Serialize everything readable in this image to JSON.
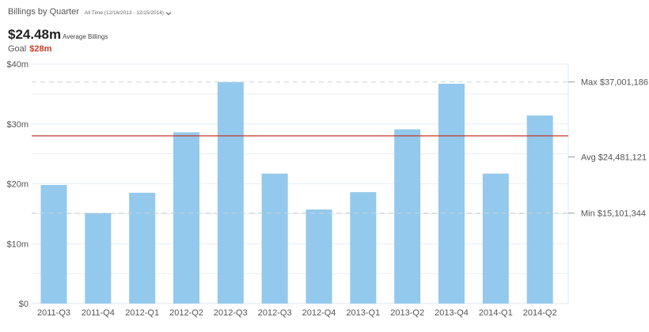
{
  "header": {
    "title": "Billings by Quarter",
    "date_range": "All Time (12/16/2013 - 12/15/2014)",
    "metric_value": "$24.48m",
    "metric_label": "Average Billings",
    "goal_label": "Goal",
    "goal_value": "$28m"
  },
  "colors": {
    "bar": "#93c9ec",
    "goal_line": "#c0392b",
    "grid": "#dce9f0",
    "stat_line": "#c9d3d8",
    "goal_text": "#cc3b2a"
  },
  "chart_data": {
    "type": "bar",
    "categories": [
      "2011-Q3",
      "2011-Q4",
      "2012-Q1",
      "2012-Q2",
      "2012-Q3",
      "2012-Q3",
      "2012-Q4",
      "2013-Q1",
      "2013-Q2",
      "2013-Q4",
      "2014-Q1",
      "2014-Q2"
    ],
    "values": [
      19.8,
      15.1,
      18.5,
      28.6,
      37.0,
      21.7,
      15.7,
      18.6,
      29.1,
      36.7,
      21.7,
      31.4
    ],
    "ylim": [
      0,
      40
    ],
    "yticks": [
      {
        "value": 0,
        "label": "$0"
      },
      {
        "value": 10,
        "label": "$10m"
      },
      {
        "value": 20,
        "label": "$20m"
      },
      {
        "value": 30,
        "label": "$30m"
      },
      {
        "value": 40,
        "label": "$40m"
      }
    ],
    "goal": 28,
    "stats": [
      {
        "name": "Max",
        "value": 37.001186,
        "label": "Max $37,001,186"
      },
      {
        "name": "Avg",
        "value": 24.481121,
        "label": "Avg $24,481,121"
      },
      {
        "name": "Min",
        "value": 15.101344,
        "label": "Min $15,101,344"
      }
    ],
    "grid": true
  }
}
